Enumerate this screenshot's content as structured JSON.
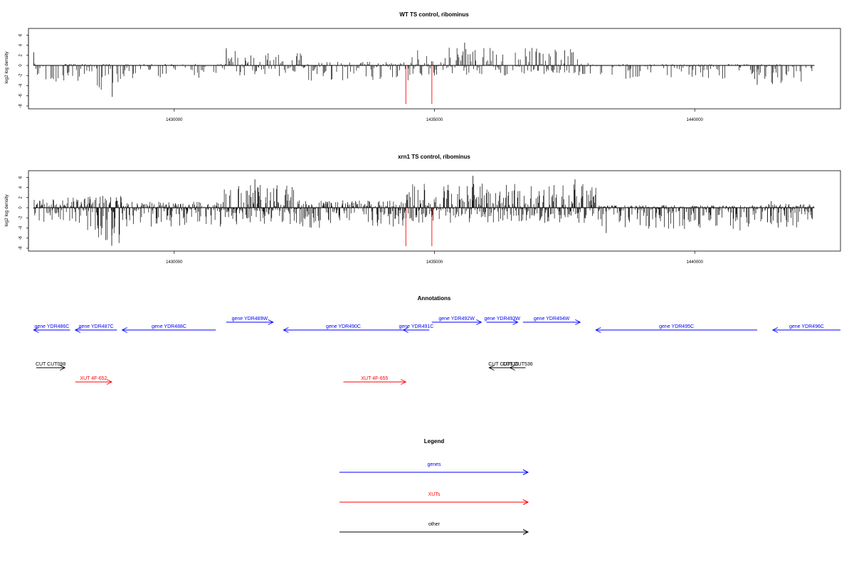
{
  "chart_data": [
    {
      "type": "bar",
      "title": "WT TS control, ribominus",
      "ylabel": "log2 log density",
      "xlabel": "",
      "xlim": [
        1427200,
        1442800
      ],
      "ylim": [
        -8,
        6.6
      ],
      "yticks": [
        6,
        4,
        2,
        0,
        -2,
        -4,
        -6,
        -8
      ],
      "xticks": [
        1430000,
        1435000,
        1440000
      ],
      "grid": false,
      "density_profile": [
        {
          "x0": 1427300,
          "x1": 1428300,
          "lo": -3.2,
          "hi": 0.4
        },
        {
          "x0": 1428300,
          "x1": 1429000,
          "lo": -5.8,
          "hi": 0.3
        },
        {
          "x0": 1429000,
          "x1": 1431000,
          "lo": -2.5,
          "hi": 0.3
        },
        {
          "x0": 1431000,
          "x1": 1432500,
          "lo": -2.2,
          "hi": 3.0
        },
        {
          "x0": 1432500,
          "x1": 1434500,
          "lo": -3.0,
          "hi": 0.8
        },
        {
          "x0": 1434500,
          "x1": 1438000,
          "lo": -2.0,
          "hi": 3.6
        },
        {
          "x0": 1438000,
          "x1": 1441400,
          "lo": -3.0,
          "hi": 0.3
        },
        {
          "x0": 1441400,
          "x1": 1442300,
          "lo": -3.8,
          "hi": 0.3
        }
      ],
      "notable_bars": [
        {
          "x": 1427300,
          "y": 2.6
        },
        {
          "x": 1428810,
          "y": -6.2
        },
        {
          "x": 1431000,
          "y": 3.4
        },
        {
          "x": 1435580,
          "y": 4.5
        },
        {
          "x": 1437500,
          "y": 3.0
        },
        {
          "x": 1441200,
          "y": -3.8
        }
      ],
      "red_markers": [
        1434450,
        1434950
      ],
      "red_marker_range": [
        -7.6,
        0
      ]
    },
    {
      "type": "bar",
      "title": "xrn1 TS control, ribominus",
      "ylabel": "log2 log density",
      "xlabel": "",
      "xlim": [
        1427200,
        1442800
      ],
      "ylim": [
        -8,
        6.6
      ],
      "yticks": [
        6,
        4,
        2,
        0,
        -2,
        -4,
        -6,
        -8
      ],
      "xticks": [
        1430000,
        1435000,
        1440000
      ],
      "grid": false,
      "density_profile": [
        {
          "x0": 1427300,
          "x1": 1428200,
          "lo": -4.0,
          "hi": 2.0
        },
        {
          "x0": 1428200,
          "x1": 1429000,
          "lo": -7.0,
          "hi": 2.5
        },
        {
          "x0": 1429000,
          "x1": 1430900,
          "lo": -3.8,
          "hi": 1.2
        },
        {
          "x0": 1430900,
          "x1": 1432400,
          "lo": -3.5,
          "hi": 4.5
        },
        {
          "x0": 1432400,
          "x1": 1434400,
          "lo": -4.2,
          "hi": 1.5
        },
        {
          "x0": 1434400,
          "x1": 1438100,
          "lo": -3.0,
          "hi": 4.8
        },
        {
          "x0": 1438100,
          "x1": 1441400,
          "lo": -4.5,
          "hi": 0.5
        },
        {
          "x0": 1441400,
          "x1": 1442300,
          "lo": -4.0,
          "hi": 0.8
        }
      ],
      "notable_bars": [
        {
          "x": 1428800,
          "y": -7.5
        },
        {
          "x": 1431550,
          "y": 5.6
        },
        {
          "x": 1435740,
          "y": 6.3
        },
        {
          "x": 1437700,
          "y": 5.6
        },
        {
          "x": 1438300,
          "y": -5.0
        },
        {
          "x": 1441470,
          "y": 1.3
        }
      ],
      "red_markers": [
        1434450,
        1434950
      ],
      "red_marker_range": [
        -7.6,
        0
      ]
    }
  ],
  "annotations": {
    "title": "Annotations",
    "tracks": [
      {
        "label": "gene YDR486C",
        "color": "#0000ff",
        "start": 1427300,
        "end": 1428000,
        "dir": "left",
        "row": "lower"
      },
      {
        "label": "gene YDR487C",
        "color": "#0000ff",
        "start": 1428100,
        "end": 1428900,
        "dir": "left",
        "row": "lower"
      },
      {
        "label": "gene YDR488C",
        "color": "#0000ff",
        "start": 1429000,
        "end": 1430800,
        "dir": "left",
        "row": "lower"
      },
      {
        "label": "gene YDR489W",
        "color": "#0000ff",
        "start": 1431000,
        "end": 1431900,
        "dir": "right",
        "row": "upper"
      },
      {
        "label": "gene YDR490C",
        "color": "#0000ff",
        "start": 1432100,
        "end": 1434400,
        "dir": "left",
        "row": "lower"
      },
      {
        "label": "gene YDR491C",
        "color": "#0000ff",
        "start": 1434400,
        "end": 1434900,
        "dir": "left",
        "row": "lower"
      },
      {
        "label": "gene YDR492W",
        "color": "#0000ff",
        "start": 1434950,
        "end": 1435900,
        "dir": "right",
        "row": "upper"
      },
      {
        "label": "gene YDR493W",
        "color": "#0000ff",
        "start": 1436000,
        "end": 1436600,
        "dir": "right",
        "row": "upper"
      },
      {
        "label": "gene YDR494W",
        "color": "#0000ff",
        "start": 1436700,
        "end": 1437800,
        "dir": "right",
        "row": "upper"
      },
      {
        "label": "gene YDR495C",
        "color": "#0000ff",
        "start": 1438100,
        "end": 1441200,
        "dir": "left",
        "row": "lower"
      },
      {
        "label": "gene YDR496C",
        "color": "#0000ff",
        "start": 1441500,
        "end": 1442800,
        "dir": "left",
        "row": "lower"
      },
      {
        "label": "CUT CUT098",
        "color": "#000000",
        "start": 1427350,
        "end": 1427900,
        "dir": "right",
        "row": "cut"
      },
      {
        "label": "CUT CUT535",
        "color": "#000000",
        "start": 1436050,
        "end": 1436600,
        "dir": "left",
        "row": "cut"
      },
      {
        "label": "CUT CUT536",
        "color": "#000000",
        "start": 1436450,
        "end": 1436750,
        "dir": "left",
        "row": "cut"
      },
      {
        "label": "XUT 4F-652",
        "color": "#ff0000",
        "start": 1428100,
        "end": 1428800,
        "dir": "right",
        "row": "xut"
      },
      {
        "label": "XUT 4F-655",
        "color": "#ff0000",
        "start": 1433250,
        "end": 1434450,
        "dir": "right",
        "row": "xut"
      }
    ]
  },
  "legend": {
    "title": "Legend",
    "items": [
      {
        "label": "genes",
        "color": "#0000ff"
      },
      {
        "label": "XUTs",
        "color": "#ff0000"
      },
      {
        "label": "other",
        "color": "#000000"
      }
    ]
  }
}
